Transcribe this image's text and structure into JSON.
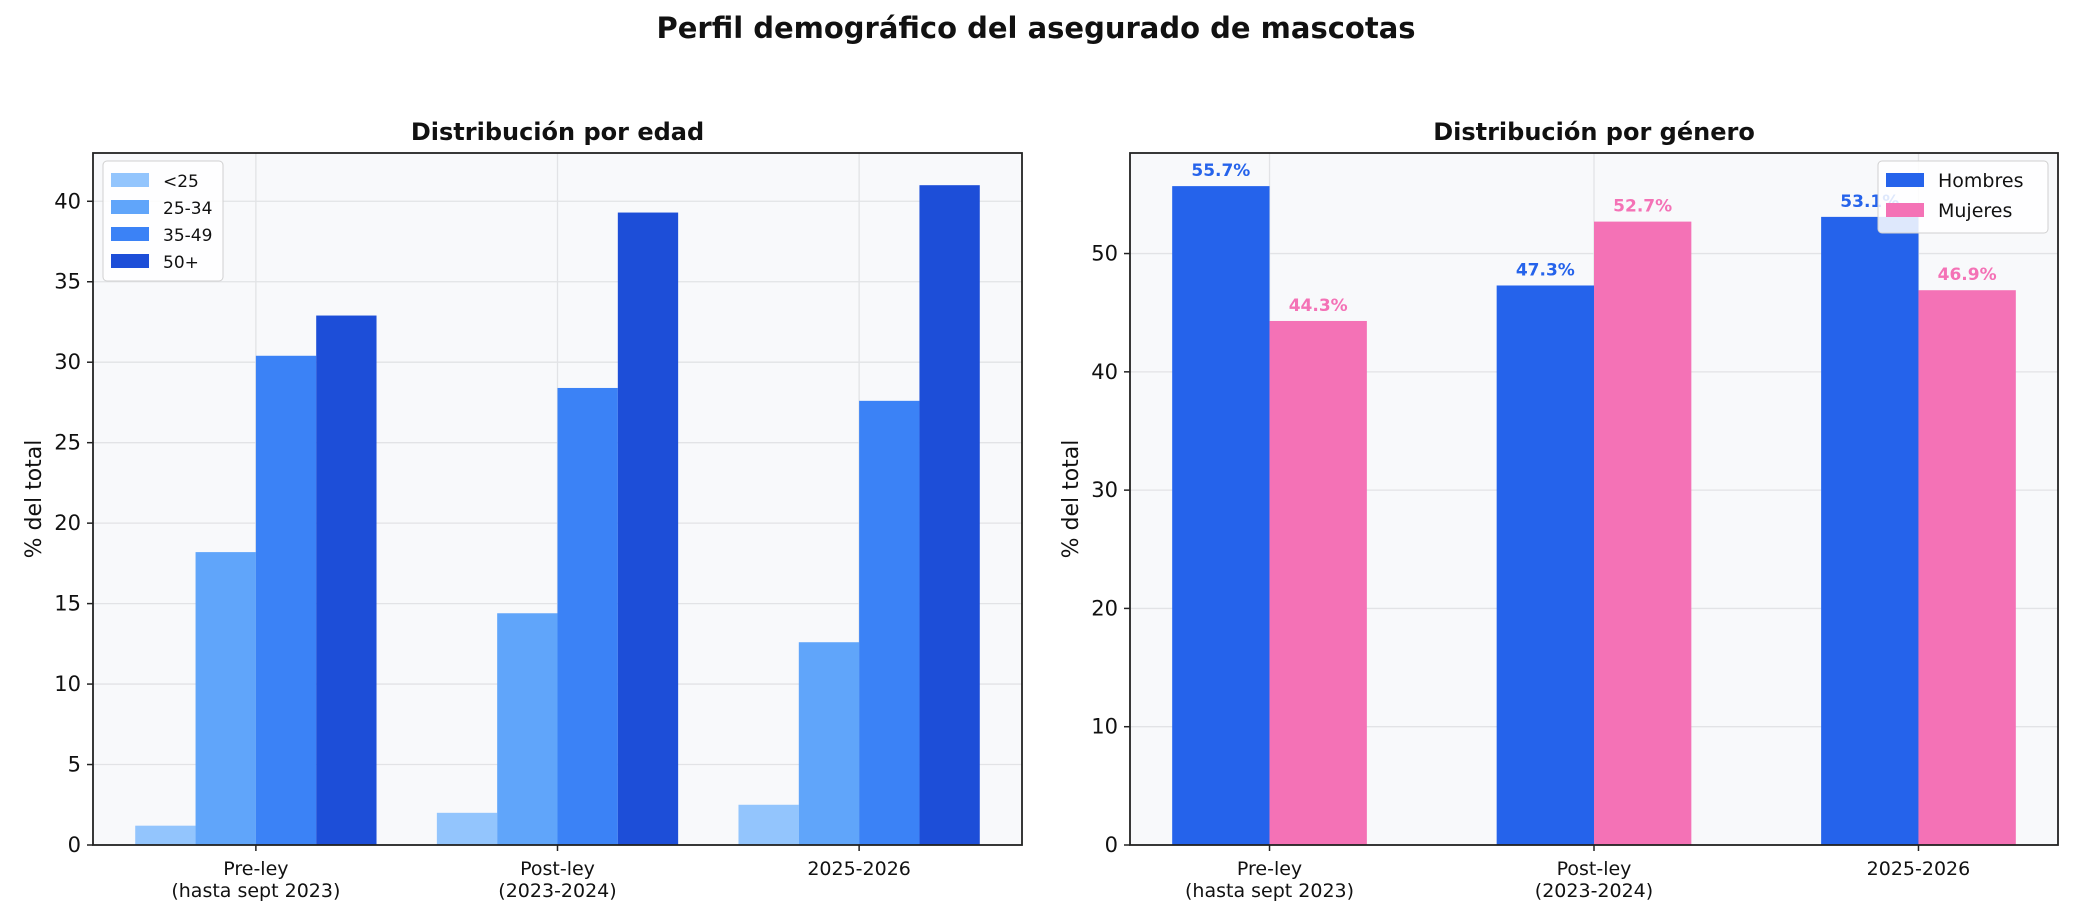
{
  "title": "Perfil demográfico del asegurado de mascotas",
  "chart_data": [
    {
      "type": "bar",
      "title": "Distribución por edad",
      "ylabel": "% del total",
      "xlabel": "",
      "categories": [
        "Pre-ley\n(hasta sept 2023)",
        "Post-ley\n(2023-2024)",
        "2025-2026"
      ],
      "ylim": [
        0,
        43
      ],
      "yticks": [
        0,
        5,
        10,
        15,
        20,
        25,
        30,
        35,
        40
      ],
      "grid": true,
      "legend": "top-left",
      "series": [
        {
          "name": "<25",
          "color": "#93c5fd",
          "values": [
            1.2,
            2.0,
            2.5
          ]
        },
        {
          "name": "25-34",
          "color": "#60a5fa",
          "values": [
            18.2,
            14.4,
            12.6
          ]
        },
        {
          "name": "35-49",
          "color": "#3b82f6",
          "values": [
            30.4,
            28.4,
            27.6
          ]
        },
        {
          "name": "50+",
          "color": "#1d4ed8",
          "values": [
            32.9,
            39.3,
            41.0
          ]
        }
      ]
    },
    {
      "type": "bar",
      "title": "Distribución por género",
      "ylabel": "% del total",
      "xlabel": "",
      "categories": [
        "Pre-ley\n(hasta sept 2023)",
        "Post-ley\n(2023-2024)",
        "2025-2026"
      ],
      "ylim": [
        0,
        58.5
      ],
      "yticks": [
        0,
        10,
        20,
        30,
        40,
        50
      ],
      "grid": true,
      "legend": "top-right",
      "series": [
        {
          "name": "Hombres",
          "color": "#2563eb",
          "values": [
            55.7,
            47.3,
            53.1
          ],
          "labels": [
            "55.7%",
            "47.3%",
            "53.1%"
          ]
        },
        {
          "name": "Mujeres",
          "color": "#f472b6",
          "values": [
            44.3,
            52.7,
            46.9
          ],
          "labels": [
            "44.3%",
            "52.7%",
            "46.9%"
          ]
        }
      ]
    }
  ]
}
